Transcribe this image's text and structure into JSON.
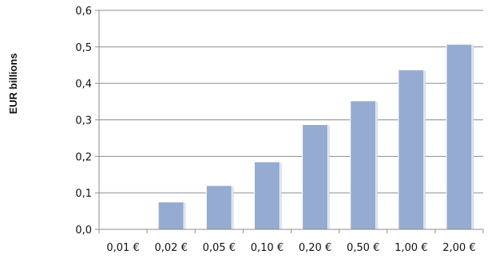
{
  "chart_data": {
    "type": "bar",
    "title": "",
    "xlabel": "",
    "ylabel": "EUR billions",
    "categories": [
      "0,01 €",
      "0,02 €",
      "0,05 €",
      "0,10 €",
      "0,20 €",
      "0,50 €",
      "1,00 €",
      "2,00 €"
    ],
    "values": [
      0.0,
      0.075,
      0.12,
      0.185,
      0.287,
      0.352,
      0.437,
      0.507
    ],
    "ylim": [
      0,
      0.6
    ],
    "yticks": [
      "0,0",
      "0,1",
      "0,2",
      "0,3",
      "0,4",
      "0,5",
      "0,6"
    ],
    "grid": true,
    "legend": "none",
    "colors": {
      "bar": "#95abd2",
      "grid": "#8c8c8c",
      "axis": "#8c8c8c"
    }
  }
}
